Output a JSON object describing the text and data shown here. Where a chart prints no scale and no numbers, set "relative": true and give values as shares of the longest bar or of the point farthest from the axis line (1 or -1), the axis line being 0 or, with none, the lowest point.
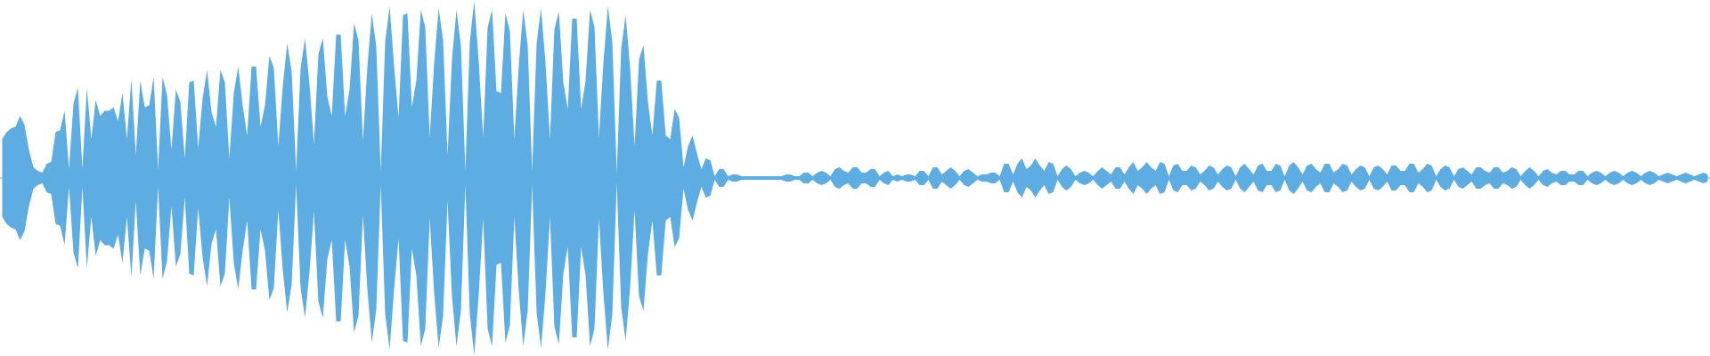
{
  "chart_data": {
    "type": "area",
    "relative": true,
    "ref_lines": [
      {
        "axis": "y",
        "value": 0,
        "color": "#5dade2"
      }
    ],
    "categories": [
      null,
      null,
      null,
      null,
      null,
      null,
      null,
      null,
      null,
      null,
      null,
      null,
      null,
      null,
      null,
      null,
      null,
      null,
      null,
      null,
      null,
      null,
      null,
      null,
      null,
      null,
      null,
      null,
      null,
      null,
      null,
      null,
      null,
      null,
      null,
      null,
      null,
      null,
      null,
      null,
      null,
      null,
      null,
      null,
      null,
      null,
      null,
      null,
      null,
      null,
      null,
      null,
      null,
      null,
      null,
      null,
      null,
      null,
      null,
      null,
      null,
      null,
      null,
      null,
      null,
      null,
      null,
      null,
      null,
      null,
      null,
      null,
      null,
      null,
      null,
      null,
      null,
      null,
      null,
      null,
      null,
      null,
      null,
      null,
      null,
      null,
      null,
      null,
      null,
      null,
      null,
      null,
      null,
      null,
      null,
      null,
      null,
      null,
      null,
      null,
      null,
      null,
      null,
      null,
      null,
      null,
      null,
      null,
      null,
      null,
      null,
      null,
      null,
      null,
      null,
      null,
      null,
      null,
      null,
      null,
      null,
      null,
      null,
      null,
      null,
      null,
      null,
      null,
      null,
      null,
      null,
      null,
      null,
      null,
      null,
      null,
      null,
      null,
      null,
      null,
      null,
      null,
      null,
      null,
      null,
      null,
      null,
      null,
      null,
      null,
      null,
      null,
      null,
      null,
      null,
      null,
      null,
      null,
      null,
      null,
      null,
      null,
      null,
      null,
      null,
      null,
      null,
      null,
      null,
      null,
      null,
      null,
      null,
      null,
      null,
      null,
      null,
      null,
      null,
      null,
      null,
      null,
      null,
      null,
      null,
      null,
      null,
      null,
      null,
      null,
      null,
      null,
      null,
      null,
      null,
      null,
      null,
      null,
      null,
      null,
      null,
      null,
      null,
      null,
      null,
      null,
      null,
      null,
      null,
      null,
      null,
      null,
      null,
      null,
      null,
      null,
      null,
      null,
      null,
      null,
      null,
      null,
      null,
      null,
      null,
      null,
      null,
      null,
      null,
      null,
      null,
      null,
      null,
      null,
      null,
      null,
      null,
      null,
      null,
      null,
      null,
      null,
      null,
      null,
      null,
      null,
      null,
      null,
      null,
      null,
      null,
      null,
      null,
      null,
      null,
      null,
      null,
      null,
      null,
      null,
      null,
      null,
      null,
      null,
      null,
      null,
      null,
      null,
      null,
      null,
      null,
      null,
      null,
      null,
      null,
      null,
      null,
      null,
      null,
      null,
      null,
      null,
      null,
      null,
      null,
      null,
      null,
      null,
      null,
      null,
      null,
      null,
      null,
      null,
      null,
      null,
      null,
      null,
      null,
      null,
      null,
      null,
      null,
      null,
      null,
      null,
      null,
      null,
      null,
      null,
      null,
      null,
      null,
      null,
      null,
      null,
      null,
      null,
      null,
      null,
      null,
      null,
      null,
      null,
      null,
      null,
      null,
      null,
      null,
      null,
      null,
      null,
      null,
      null,
      null,
      null,
      null,
      null,
      null,
      null,
      null,
      null,
      null,
      null,
      null,
      null,
      null,
      null,
      null,
      null,
      null,
      null,
      null,
      null,
      null,
      null,
      null,
      null,
      null,
      null,
      null,
      null,
      null,
      null,
      null,
      null,
      null,
      null,
      null,
      null,
      null,
      null,
      null,
      null,
      null,
      null,
      null,
      null,
      null,
      null,
      null,
      null,
      null,
      null
    ],
    "series": [
      {
        "color": "#5dade2",
        "values": [
          0.22,
          0.26,
          0.28,
          0.29,
          0.35,
          0.3,
          0.16,
          0.06,
          0.04,
          0.03,
          0.08,
          0.09,
          0.26,
          0.27,
          0.38,
          0.05,
          0.42,
          0.51,
          0.05,
          0.51,
          0.22,
          0.44,
          0.35,
          0.38,
          0.38,
          0.4,
          0.32,
          0.48,
          0.22,
          0.56,
          0.13,
          0.55,
          0.4,
          0.41,
          0.57,
          0.05,
          0.57,
          0.47,
          0.16,
          0.5,
          0.43,
          0.11,
          0.54,
          0.55,
          0.17,
          0.45,
          0.61,
          0.37,
          0.29,
          0.61,
          0.54,
          0.11,
          0.48,
          0.63,
          0.41,
          0.24,
          0.63,
          0.63,
          0.29,
          0.41,
          0.69,
          0.62,
          0.18,
          0.52,
          0.76,
          0.6,
          0.04,
          0.62,
          0.79,
          0.53,
          0.19,
          0.7,
          0.79,
          0.46,
          0.35,
          0.81,
          0.81,
          0.35,
          0.5,
          0.87,
          0.78,
          0.21,
          0.63,
          0.93,
          0.74,
          0.04,
          0.77,
          0.97,
          0.63,
          0.34,
          0.92,
          0.93,
          0.4,
          0.55,
          0.95,
          0.85,
          0.23,
          0.65,
          0.96,
          0.78,
          0.13,
          0.67,
          0.95,
          0.75,
          0.04,
          0.77,
          1.0,
          0.66,
          0.23,
          0.85,
          0.95,
          0.49,
          0.48,
          0.93,
          0.83,
          0.22,
          0.64,
          0.95,
          0.75,
          0.04,
          0.76,
          0.96,
          0.65,
          0.22,
          0.84,
          0.94,
          0.54,
          0.39,
          0.9,
          0.9,
          0.39,
          0.55,
          0.95,
          0.85,
          0.23,
          0.65,
          0.97,
          0.77,
          0.03,
          0.73,
          0.92,
          0.62,
          0.18,
          0.67,
          0.75,
          0.43,
          0.24,
          0.55,
          0.55,
          0.24,
          0.22,
          0.39,
          0.34,
          0.06,
          0.18,
          0.24,
          0.14,
          0.05,
          0.11,
          0.1,
          0.01,
          0.05,
          0.05,
          0.01,
          0.02,
          0.02,
          0.01,
          0.01,
          0.01,
          0.01,
          0.01,
          0.01,
          0.01,
          0.01,
          0.01,
          0.01,
          0.02,
          0.02,
          0.01,
          0.01,
          0.03,
          0.03,
          0.01,
          0.03,
          0.04,
          0.03,
          0.01,
          0.05,
          0.06,
          0.04,
          0.03,
          0.06,
          0.06,
          0.03,
          0.03,
          0.05,
          0.05,
          0.01,
          0.03,
          0.04,
          0.01,
          0.02,
          0.01,
          0.02,
          0.02,
          0.01,
          0.04,
          0.04,
          0.01,
          0.06,
          0.06,
          0.02,
          0.04,
          0.06,
          0.04,
          0.01,
          0.04,
          0.05,
          0.03,
          0.01,
          0.02,
          0.02,
          0.03,
          0.03,
          0.01,
          0.08,
          0.08,
          0.02,
          0.08,
          0.11,
          0.05,
          0.07,
          0.11,
          0.07,
          0.04,
          0.09,
          0.08,
          0.01,
          0.05,
          0.07,
          0.05,
          0.01,
          0.03,
          0.04,
          0.03,
          0.01,
          0.04,
          0.06,
          0.04,
          0.02,
          0.06,
          0.06,
          0.02,
          0.06,
          0.09,
          0.04,
          0.06,
          0.09,
          0.06,
          0.04,
          0.09,
          0.08,
          0.01,
          0.07,
          0.08,
          0.04,
          0.04,
          0.07,
          0.06,
          0.02,
          0.04,
          0.07,
          0.06,
          0.02,
          0.05,
          0.07,
          0.06,
          0.01,
          0.06,
          0.08,
          0.05,
          0.02,
          0.07,
          0.08,
          0.04,
          0.04,
          0.08,
          0.07,
          0.01,
          0.07,
          0.09,
          0.06,
          0.02,
          0.07,
          0.08,
          0.05,
          0.03,
          0.08,
          0.08,
          0.03,
          0.05,
          0.08,
          0.07,
          0.02,
          0.05,
          0.07,
          0.06,
          0.01,
          0.06,
          0.07,
          0.05,
          0.02,
          0.07,
          0.07,
          0.04,
          0.04,
          0.08,
          0.08,
          0.03,
          0.05,
          0.08,
          0.07,
          0.01,
          0.05,
          0.07,
          0.06,
          0.01,
          0.05,
          0.06,
          0.04,
          0.02,
          0.06,
          0.06,
          0.04,
          0.03,
          0.06,
          0.06,
          0.03,
          0.04,
          0.06,
          0.05,
          0.01,
          0.04,
          0.06,
          0.04,
          0.01,
          0.04,
          0.05,
          0.03,
          0.02,
          0.04,
          0.04,
          0.02,
          0.02,
          0.04,
          0.04,
          0.01,
          0.03,
          0.04,
          0.03,
          0.01,
          0.03,
          0.04,
          0.03,
          0.01,
          0.03,
          0.04,
          0.03,
          0.01,
          0.03,
          0.04,
          0.03,
          0.01,
          0.02,
          0.03,
          0.02,
          0.01,
          0.02,
          0.03,
          0.02,
          0.01,
          0.02,
          0.03,
          0.02
        ]
      },
      {
        "color": "#5dade2",
        "values": [
          -0.22,
          -0.26,
          -0.28,
          -0.29,
          -0.35,
          -0.3,
          -0.16,
          -0.06,
          -0.04,
          -0.03,
          -0.08,
          -0.09,
          -0.26,
          -0.27,
          -0.38,
          -0.05,
          -0.42,
          -0.51,
          -0.05,
          -0.51,
          -0.22,
          -0.44,
          -0.35,
          -0.38,
          -0.38,
          -0.4,
          -0.32,
          -0.48,
          -0.22,
          -0.56,
          -0.13,
          -0.55,
          -0.4,
          -0.41,
          -0.57,
          -0.05,
          -0.57,
          -0.47,
          -0.16,
          -0.5,
          -0.43,
          -0.11,
          -0.54,
          -0.55,
          -0.17,
          -0.45,
          -0.61,
          -0.37,
          -0.29,
          -0.61,
          -0.54,
          -0.11,
          -0.48,
          -0.63,
          -0.41,
          -0.24,
          -0.63,
          -0.63,
          -0.29,
          -0.41,
          -0.69,
          -0.62,
          -0.18,
          -0.52,
          -0.76,
          -0.6,
          -0.04,
          -0.62,
          -0.79,
          -0.53,
          -0.19,
          -0.7,
          -0.79,
          -0.46,
          -0.35,
          -0.81,
          -0.81,
          -0.35,
          -0.5,
          -0.87,
          -0.78,
          -0.21,
          -0.63,
          -0.93,
          -0.74,
          -0.04,
          -0.77,
          -0.97,
          -0.63,
          -0.34,
          -0.92,
          -0.93,
          -0.4,
          -0.55,
          -0.95,
          -0.85,
          -0.23,
          -0.65,
          -0.96,
          -0.78,
          -0.13,
          -0.67,
          -0.95,
          -0.75,
          -0.04,
          -0.77,
          -1.0,
          -0.66,
          -0.23,
          -0.85,
          -0.95,
          -0.49,
          -0.48,
          -0.93,
          -0.83,
          -0.22,
          -0.64,
          -0.95,
          -0.75,
          -0.04,
          -0.76,
          -0.96,
          -0.65,
          -0.22,
          -0.84,
          -0.94,
          -0.54,
          -0.39,
          -0.9,
          -0.9,
          -0.39,
          -0.55,
          -0.95,
          -0.85,
          -0.23,
          -0.65,
          -0.97,
          -0.77,
          -0.03,
          -0.73,
          -0.92,
          -0.62,
          -0.18,
          -0.67,
          -0.75,
          -0.43,
          -0.24,
          -0.55,
          -0.55,
          -0.24,
          -0.22,
          -0.39,
          -0.34,
          -0.06,
          -0.18,
          -0.24,
          -0.14,
          -0.05,
          -0.11,
          -0.1,
          -0.01,
          -0.05,
          -0.05,
          -0.01,
          -0.02,
          -0.02,
          -0.01,
          -0.01,
          -0.01,
          -0.01,
          -0.01,
          -0.01,
          -0.01,
          -0.01,
          -0.01,
          -0.01,
          -0.02,
          -0.02,
          -0.01,
          -0.01,
          -0.03,
          -0.03,
          -0.01,
          -0.03,
          -0.04,
          -0.03,
          -0.01,
          -0.05,
          -0.06,
          -0.04,
          -0.03,
          -0.06,
          -0.06,
          -0.03,
          -0.03,
          -0.05,
          -0.05,
          -0.01,
          -0.03,
          -0.04,
          -0.01,
          -0.02,
          -0.01,
          -0.02,
          -0.02,
          -0.01,
          -0.04,
          -0.04,
          -0.01,
          -0.06,
          -0.06,
          -0.02,
          -0.04,
          -0.06,
          -0.04,
          -0.01,
          -0.04,
          -0.05,
          -0.03,
          -0.01,
          -0.02,
          -0.02,
          -0.03,
          -0.03,
          -0.01,
          -0.08,
          -0.08,
          -0.02,
          -0.08,
          -0.11,
          -0.05,
          -0.07,
          -0.11,
          -0.07,
          -0.04,
          -0.09,
          -0.08,
          -0.01,
          -0.05,
          -0.07,
          -0.05,
          -0.01,
          -0.03,
          -0.04,
          -0.03,
          -0.01,
          -0.04,
          -0.06,
          -0.04,
          -0.02,
          -0.06,
          -0.06,
          -0.02,
          -0.06,
          -0.09,
          -0.04,
          -0.06,
          -0.09,
          -0.06,
          -0.04,
          -0.09,
          -0.08,
          -0.01,
          -0.07,
          -0.08,
          -0.04,
          -0.04,
          -0.07,
          -0.06,
          -0.02,
          -0.04,
          -0.07,
          -0.06,
          -0.02,
          -0.05,
          -0.07,
          -0.06,
          -0.01,
          -0.06,
          -0.08,
          -0.05,
          -0.02,
          -0.07,
          -0.08,
          -0.04,
          -0.04,
          -0.08,
          -0.07,
          -0.01,
          -0.07,
          -0.09,
          -0.06,
          -0.02,
          -0.07,
          -0.08,
          -0.05,
          -0.03,
          -0.08,
          -0.08,
          -0.03,
          -0.05,
          -0.08,
          -0.07,
          -0.02,
          -0.05,
          -0.07,
          -0.06,
          -0.01,
          -0.06,
          -0.07,
          -0.05,
          -0.02,
          -0.07,
          -0.07,
          -0.04,
          -0.04,
          -0.08,
          -0.08,
          -0.03,
          -0.05,
          -0.08,
          -0.07,
          -0.01,
          -0.05,
          -0.07,
          -0.06,
          -0.01,
          -0.05,
          -0.06,
          -0.04,
          -0.02,
          -0.06,
          -0.06,
          -0.04,
          -0.03,
          -0.06,
          -0.06,
          -0.03,
          -0.04,
          -0.06,
          -0.05,
          -0.01,
          -0.04,
          -0.06,
          -0.04,
          -0.01,
          -0.04,
          -0.05,
          -0.03,
          -0.02,
          -0.04,
          -0.04,
          -0.02,
          -0.02,
          -0.04,
          -0.04,
          -0.01,
          -0.03,
          -0.04,
          -0.03,
          -0.01,
          -0.03,
          -0.04,
          -0.03,
          -0.01,
          -0.03,
          -0.04,
          -0.03,
          -0.01,
          -0.03,
          -0.04,
          -0.03,
          -0.01,
          -0.02,
          -0.03,
          -0.02,
          -0.01,
          -0.02,
          -0.03,
          -0.02,
          -0.01,
          -0.02,
          -0.03,
          -0.02
        ]
      }
    ]
  }
}
